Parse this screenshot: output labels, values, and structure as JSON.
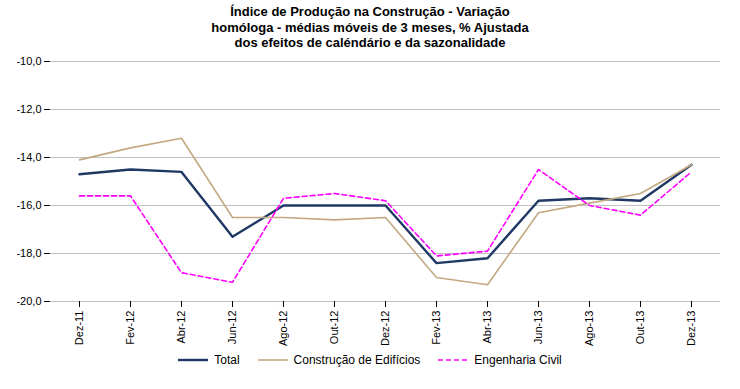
{
  "chart_data": {
    "type": "line",
    "title": "Índice de Produção na Construção -  Variação\nhomóloga - médias móveis de 3 meses, % Ajustada\ndos efeitos de caléndário  e da sazonalidade",
    "categories": [
      "Dez-11",
      "Fev-12",
      "Abr-12",
      "Jun-12",
      "Ago-12",
      "Out-12",
      "Dez-12",
      "Fev-13",
      "Abr-13",
      "Jun-13",
      "Ago-13",
      "Out-13",
      "Dez-13"
    ],
    "series": [
      {
        "name": "Total",
        "color": "#1F3864",
        "line_style": "solid",
        "values": [
          -14.7,
          -14.5,
          -14.6,
          -17.3,
          -16.0,
          -16.0,
          -16.0,
          -18.4,
          -18.2,
          -15.8,
          -15.7,
          -15.8,
          -14.3
        ]
      },
      {
        "name": "Construção de Edifícios",
        "color": "#C4A882",
        "line_style": "solid",
        "values": [
          -14.1,
          -13.6,
          -13.2,
          -16.5,
          -16.5,
          -16.6,
          -16.5,
          -19.0,
          -19.3,
          -16.3,
          -15.9,
          -15.5,
          -14.3
        ]
      },
      {
        "name": "Engenharia Civil",
        "color": "#FF00FF",
        "line_style": "dashed",
        "values": [
          -15.6,
          -15.6,
          -18.8,
          -19.2,
          -15.7,
          -15.5,
          -15.8,
          -18.1,
          -17.9,
          -14.5,
          -16.0,
          -16.4,
          -14.6
        ]
      }
    ],
    "ylim": [
      -20.0,
      -10.0
    ],
    "yticks": [
      {
        "value": -10.0,
        "label": "-10,0"
      },
      {
        "value": -12.0,
        "label": "-12,0"
      },
      {
        "value": -14.0,
        "label": "-14,0"
      },
      {
        "value": -16.0,
        "label": "-16,0"
      },
      {
        "value": -18.0,
        "label": "-18,0"
      },
      {
        "value": -20.0,
        "label": "-20,0"
      }
    ],
    "grid": true,
    "legend": "bottom"
  }
}
